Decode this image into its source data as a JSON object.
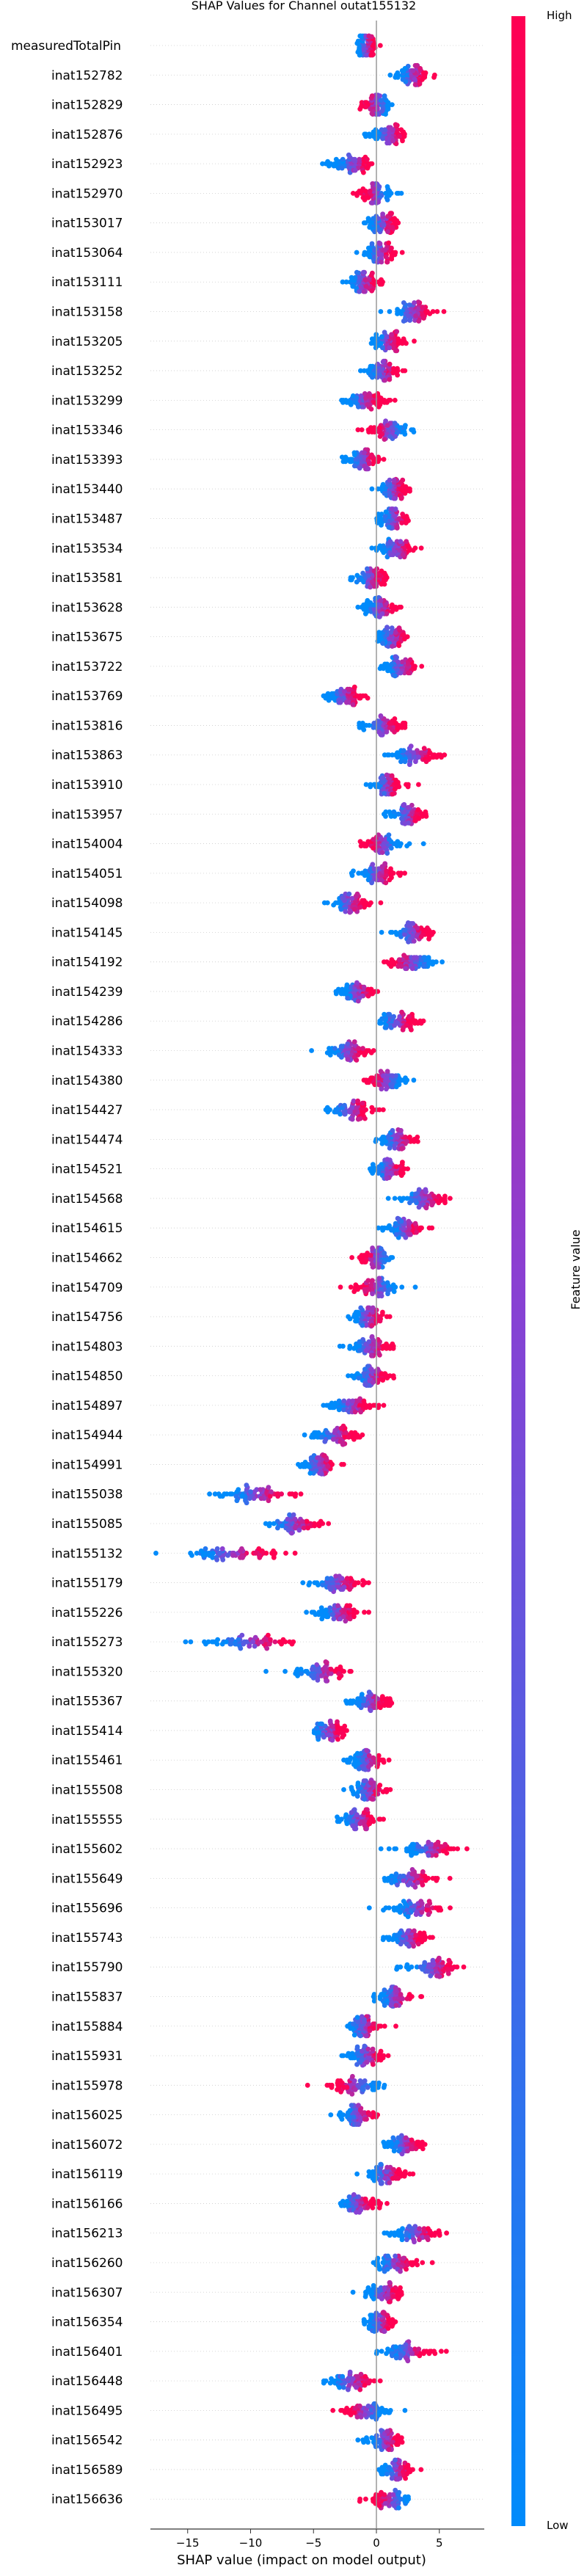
{
  "chart_data": {
    "type": "scatter",
    "title": "SHAP Values for Channel outat155132",
    "xlabel": "SHAP value (impact on model output)",
    "x_ticks": [
      -15,
      -10,
      -5,
      0,
      5
    ],
    "xlim": [
      -17.6,
      8.3
    ],
    "features": [
      {
        "name": "measuredTotalPin",
        "center": -0.8,
        "spread": 0.8,
        "lowside": -1
      },
      {
        "name": "inat152782",
        "center": 2.9,
        "spread": 1.4,
        "lowside": -1
      },
      {
        "name": "inat152829",
        "center": 0.0,
        "spread": 1.5,
        "lowside": 1
      },
      {
        "name": "inat152876",
        "center": 1.0,
        "spread": 1.5,
        "lowside": -1
      },
      {
        "name": "inat152923",
        "center": -1.9,
        "spread": 1.7,
        "lowside": -1
      },
      {
        "name": "inat152970",
        "center": 0.0,
        "spread": 1.5,
        "lowside": 1
      },
      {
        "name": "inat153017",
        "center": 0.5,
        "spread": 1.4,
        "lowside": -1
      },
      {
        "name": "inat153064",
        "center": 0.3,
        "spread": 1.3,
        "lowside": -1
      },
      {
        "name": "inat153111",
        "center": -1.1,
        "spread": 1.4,
        "lowside": -1
      },
      {
        "name": "inat153158",
        "center": 2.9,
        "spread": 1.8,
        "lowside": -1
      },
      {
        "name": "inat153205",
        "center": 0.9,
        "spread": 1.4,
        "lowside": -1
      },
      {
        "name": "inat153252",
        "center": 0.5,
        "spread": 1.6,
        "lowside": -1
      },
      {
        "name": "inat153299",
        "center": -1.0,
        "spread": 1.7,
        "lowside": -1
      },
      {
        "name": "inat153346",
        "center": 1.0,
        "spread": 1.8,
        "lowside": 1
      },
      {
        "name": "inat153393",
        "center": -1.0,
        "spread": 1.4,
        "lowside": -1
      },
      {
        "name": "inat153440",
        "center": 1.3,
        "spread": 1.3,
        "lowside": -1
      },
      {
        "name": "inat153487",
        "center": 1.4,
        "spread": 1.3,
        "lowside": -1
      },
      {
        "name": "inat153534",
        "center": 1.6,
        "spread": 1.6,
        "lowside": -1
      },
      {
        "name": "inat153581",
        "center": -0.5,
        "spread": 1.6,
        "lowside": -1
      },
      {
        "name": "inat153628",
        "center": 0.3,
        "spread": 1.6,
        "lowside": -1
      },
      {
        "name": "inat153675",
        "center": 1.3,
        "spread": 1.4,
        "lowside": -1
      },
      {
        "name": "inat153722",
        "center": 2.0,
        "spread": 1.6,
        "lowside": -1
      },
      {
        "name": "inat153769",
        "center": -2.5,
        "spread": 1.5,
        "lowside": -1
      },
      {
        "name": "inat153816",
        "center": 0.5,
        "spread": 1.8,
        "lowside": -1
      },
      {
        "name": "inat153863",
        "center": 3.1,
        "spread": 2.0,
        "lowside": -1
      },
      {
        "name": "inat153910",
        "center": 0.8,
        "spread": 1.3,
        "lowside": -1
      },
      {
        "name": "inat153957",
        "center": 2.5,
        "spread": 1.7,
        "lowside": -1
      },
      {
        "name": "inat154004",
        "center": 0.5,
        "spread": 1.7,
        "lowside": 1
      },
      {
        "name": "inat154051",
        "center": 0.0,
        "spread": 1.7,
        "lowside": -1
      },
      {
        "name": "inat154098",
        "center": -2.1,
        "spread": 1.7,
        "lowside": -1
      },
      {
        "name": "inat154145",
        "center": 2.8,
        "spread": 1.8,
        "lowside": -1
      },
      {
        "name": "inat154192",
        "center": 2.8,
        "spread": 2.0,
        "lowside": 1
      },
      {
        "name": "inat154239",
        "center": -1.5,
        "spread": 1.5,
        "lowside": -1
      },
      {
        "name": "inat154286",
        "center": 1.6,
        "spread": 1.7,
        "lowside": -1
      },
      {
        "name": "inat154333",
        "center": -2.2,
        "spread": 2.0,
        "lowside": -1
      },
      {
        "name": "inat154380",
        "center": 0.8,
        "spread": 1.8,
        "lowside": 1
      },
      {
        "name": "inat154427",
        "center": -2.1,
        "spread": 1.9,
        "lowside": -1
      },
      {
        "name": "inat154474",
        "center": 1.7,
        "spread": 1.6,
        "lowside": -1
      },
      {
        "name": "inat154521",
        "center": 1.0,
        "spread": 1.5,
        "lowside": -1
      },
      {
        "name": "inat154568",
        "center": 3.8,
        "spread": 2.1,
        "lowside": -1
      },
      {
        "name": "inat154615",
        "center": 2.3,
        "spread": 1.6,
        "lowside": -1
      },
      {
        "name": "inat154662",
        "center": 0.0,
        "spread": 1.5,
        "lowside": 1
      },
      {
        "name": "inat154709",
        "center": 0.0,
        "spread": 1.9,
        "lowside": 1
      },
      {
        "name": "inat154756",
        "center": -0.7,
        "spread": 1.5,
        "lowside": -1
      },
      {
        "name": "inat154803",
        "center": -0.5,
        "spread": 1.7,
        "lowside": -1
      },
      {
        "name": "inat154850",
        "center": -0.4,
        "spread": 1.7,
        "lowside": -1
      },
      {
        "name": "inat154897",
        "center": -2.0,
        "spread": 1.8,
        "lowside": -1
      },
      {
        "name": "inat154944",
        "center": -3.3,
        "spread": 1.9,
        "lowside": -1
      },
      {
        "name": "inat154991",
        "center": -4.5,
        "spread": 1.7,
        "lowside": -1
      },
      {
        "name": "inat155038",
        "center": -9.5,
        "spread": 3.0,
        "lowside": -1
      },
      {
        "name": "inat155085",
        "center": -6.5,
        "spread": 2.5,
        "lowside": -1
      },
      {
        "name": "inat155132",
        "center": -11.5,
        "spread": 4.2,
        "lowside": -1
      },
      {
        "name": "inat155179",
        "center": -3.0,
        "spread": 2.2,
        "lowside": -1
      },
      {
        "name": "inat155226",
        "center": -3.0,
        "spread": 1.8,
        "lowside": -1
      },
      {
        "name": "inat155273",
        "center": -10.0,
        "spread": 3.4,
        "lowside": -1
      },
      {
        "name": "inat155320",
        "center": -4.5,
        "spread": 2.5,
        "lowside": -1
      },
      {
        "name": "inat155367",
        "center": -0.5,
        "spread": 1.7,
        "lowside": -1
      },
      {
        "name": "inat155414",
        "center": -3.8,
        "spread": 1.6,
        "lowside": -1
      },
      {
        "name": "inat155461",
        "center": -0.8,
        "spread": 1.5,
        "lowside": -1
      },
      {
        "name": "inat155508",
        "center": -0.6,
        "spread": 1.6,
        "lowside": -1
      },
      {
        "name": "inat155555",
        "center": -1.5,
        "spread": 1.8,
        "lowside": -1
      },
      {
        "name": "inat155602",
        "center": 4.2,
        "spread": 2.3,
        "lowside": -1
      },
      {
        "name": "inat155649",
        "center": 2.5,
        "spread": 2.3,
        "lowside": -1
      },
      {
        "name": "inat155696",
        "center": 3.3,
        "spread": 2.2,
        "lowside": -1
      },
      {
        "name": "inat155743",
        "center": 2.5,
        "spread": 1.6,
        "lowside": -1
      },
      {
        "name": "inat155790",
        "center": 4.5,
        "spread": 2.3,
        "lowside": -1
      },
      {
        "name": "inat155837",
        "center": 1.5,
        "spread": 1.6,
        "lowside": -1
      },
      {
        "name": "inat155884",
        "center": -1.0,
        "spread": 1.5,
        "lowside": -1
      },
      {
        "name": "inat155931",
        "center": -0.8,
        "spread": 1.6,
        "lowside": -1
      },
      {
        "name": "inat155978",
        "center": -1.5,
        "spread": 2.2,
        "lowside": 1
      },
      {
        "name": "inat156025",
        "center": -1.5,
        "spread": 1.6,
        "lowside": -1
      },
      {
        "name": "inat156072",
        "center": 2.2,
        "spread": 1.6,
        "lowside": -1
      },
      {
        "name": "inat156119",
        "center": 0.8,
        "spread": 1.6,
        "lowside": -1
      },
      {
        "name": "inat156166",
        "center": -1.5,
        "spread": 1.7,
        "lowside": -1
      },
      {
        "name": "inat156213",
        "center": 3.2,
        "spread": 2.1,
        "lowside": -1
      },
      {
        "name": "inat156260",
        "center": 1.5,
        "spread": 1.8,
        "lowside": -1
      },
      {
        "name": "inat156307",
        "center": 0.6,
        "spread": 1.6,
        "lowside": -1
      },
      {
        "name": "inat156354",
        "center": 0.3,
        "spread": 1.3,
        "lowside": -1
      },
      {
        "name": "inat156401",
        "center": 2.5,
        "spread": 2.2,
        "lowside": -1
      },
      {
        "name": "inat156448",
        "center": -2.0,
        "spread": 2.2,
        "lowside": -1
      },
      {
        "name": "inat156495",
        "center": -0.8,
        "spread": 2.0,
        "lowside": 1
      },
      {
        "name": "inat156542",
        "center": 0.7,
        "spread": 1.4,
        "lowside": -1
      },
      {
        "name": "inat156589",
        "center": 1.6,
        "spread": 1.4,
        "lowside": -1
      },
      {
        "name": "inat156636",
        "center": 1.2,
        "spread": 1.8,
        "lowside": 1
      }
    ],
    "colorbar": {
      "label": "Feature value",
      "high_label": "High",
      "low_label": "Low",
      "color_high": "#ff0052",
      "color_low": "#008bfb"
    }
  }
}
